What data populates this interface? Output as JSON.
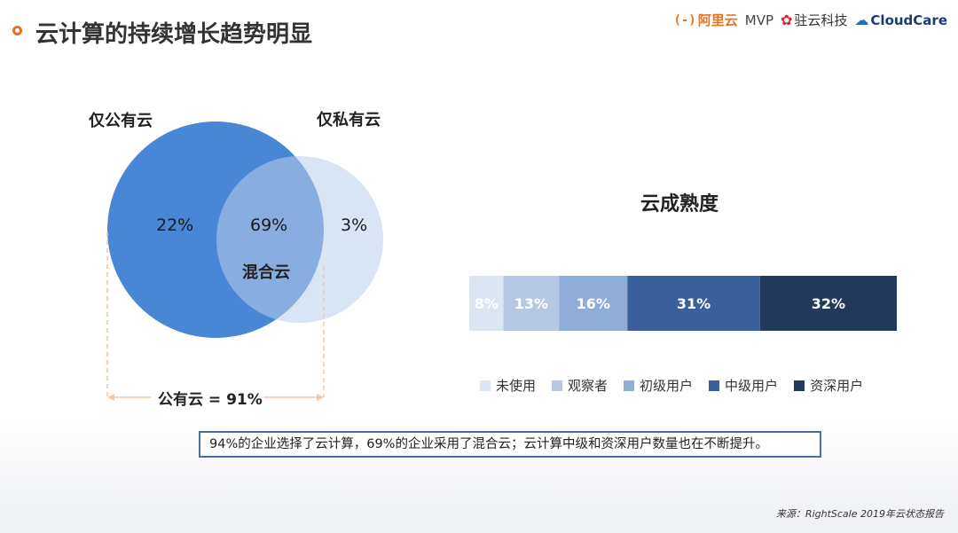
{
  "header": {
    "title": "云计算的持续增长趋势明显",
    "logos": {
      "aliyun": "阿里云",
      "aliyun_bracket": "(-)",
      "mvp": "MVP",
      "zhuyun": "驻云科技",
      "cloudcare": "CloudCare"
    }
  },
  "venn": {
    "public_only_label": "仅公有云",
    "private_only_label": "仅私有云",
    "hybrid_label": "混合云",
    "public_only_pct": "22%",
    "hybrid_pct": "69%",
    "private_only_pct": "3%",
    "public_total": "公有云 = 91%",
    "colors": {
      "public": "#4a86d6",
      "private": "#b9cdeb",
      "overlap": "#7da6df"
    }
  },
  "chart_data": {
    "type": "bar",
    "orientation": "horizontal-stacked",
    "title": "云成熟度",
    "categories": [
      "未使用",
      "观察者",
      "初级用户",
      "中级用户",
      "资深用户"
    ],
    "values": [
      8,
      13,
      16,
      31,
      32
    ],
    "labels": [
      "8%",
      "13%",
      "16%",
      "31%",
      "32%"
    ],
    "colors": [
      "#dce5f2",
      "#b6c8e4",
      "#8fadd6",
      "#39609a",
      "#22395c"
    ],
    "legend_position": "bottom"
  },
  "summary": "94%的企业选择了云计算，69%的企业采用了混合云；云计算中级和资深用户数量也在不断提升。",
  "source": "来源：RightScale 2019年云状态报告"
}
